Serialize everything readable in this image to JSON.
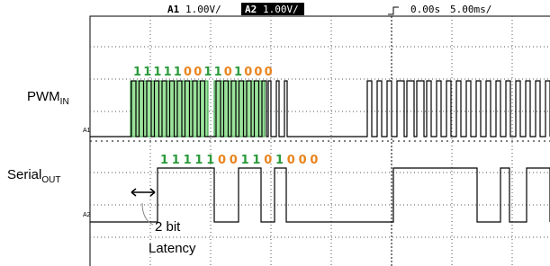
{
  "header": {
    "ch1": "A1",
    "ch1_scale": "1.00V/",
    "ch2": "A2",
    "ch2_scale": "1.00V/",
    "time_offset": "0.00s",
    "time_scale": "5.00ms/"
  },
  "signals": {
    "input": {
      "name": "PWM",
      "sub": "IN",
      "marker": "A1"
    },
    "output": {
      "name": "Serial",
      "sub": "OUT",
      "marker": "A2"
    }
  },
  "bits_in": [
    "1",
    "1",
    "1",
    "1",
    "1",
    "0",
    "0",
    "1",
    "1",
    "0",
    "1",
    "0",
    "0",
    "0"
  ],
  "bits_out": [
    "1",
    "1",
    "1",
    "1",
    "1",
    "0",
    "0",
    "1",
    "1",
    "0",
    "1",
    "0",
    "0",
    "0"
  ],
  "bit_colors": {
    "1": "#2a9a3a",
    "0": "#e8841e"
  },
  "annotation": {
    "line1": "2 bit",
    "line2": "Latency"
  }
}
